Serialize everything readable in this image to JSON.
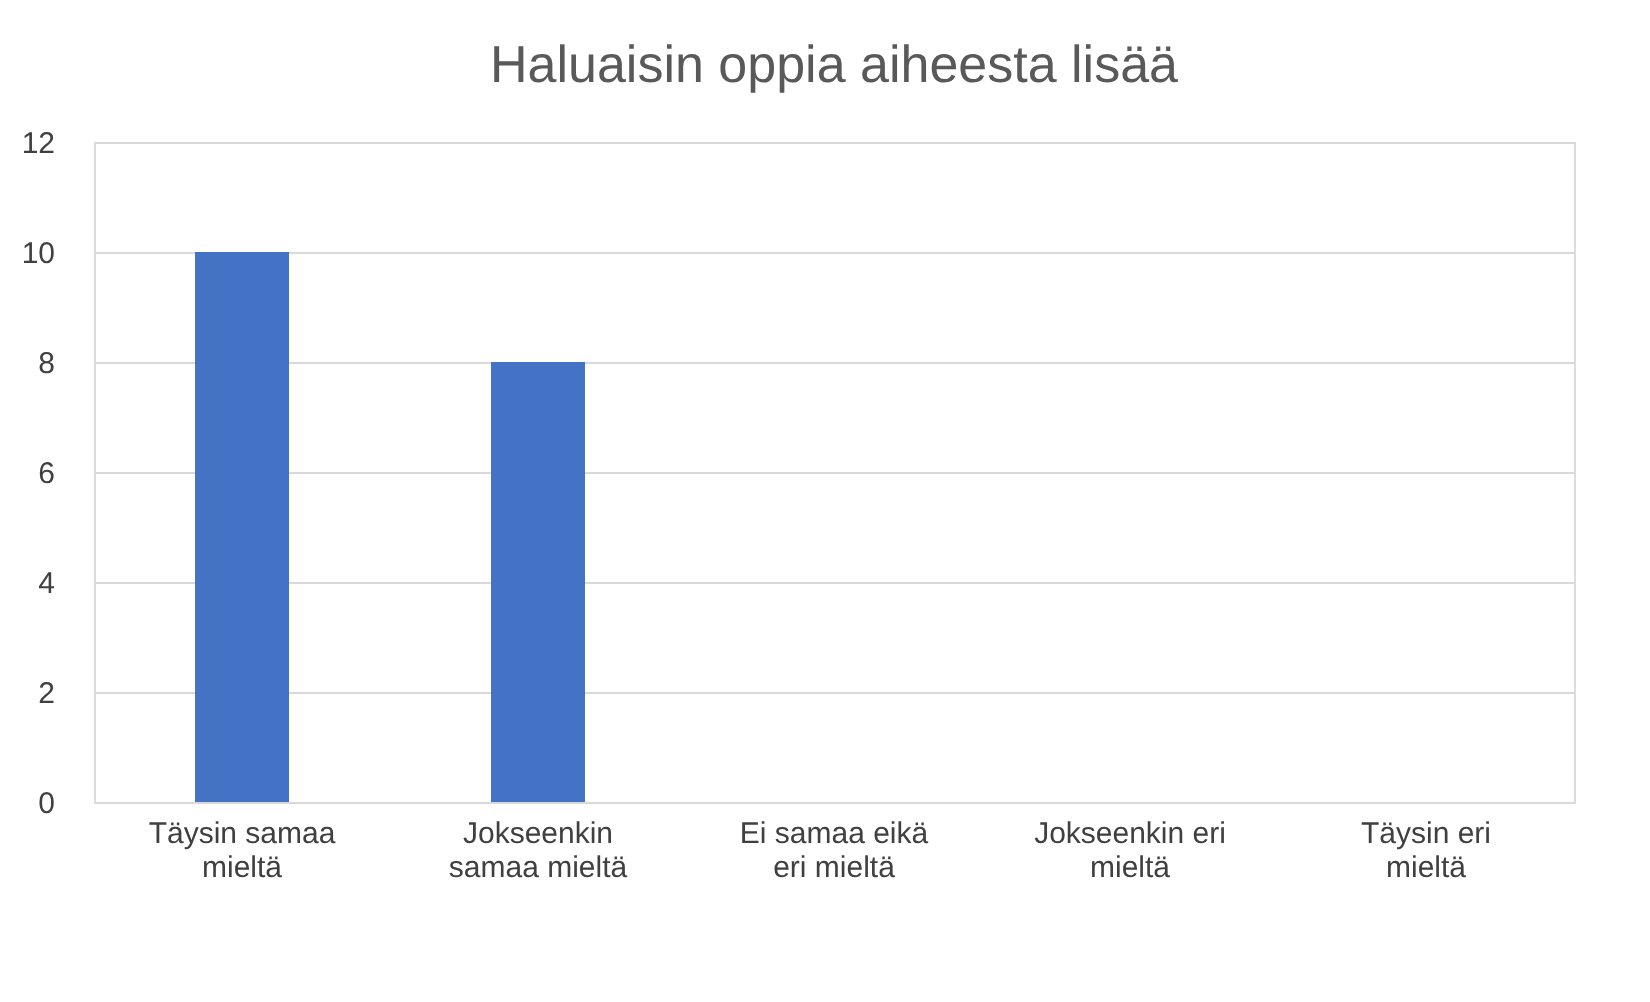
{
  "chart_data": {
    "type": "bar",
    "title": "Haluaisin oppia aiheesta lisää",
    "categories": [
      "Täysin samaa mieltä",
      "Jokseenkin samaa mieltä",
      "Ei samaa eikä eri mieltä",
      "Jokseenkin eri mieltä",
      "Täysin eri mieltä"
    ],
    "values": [
      10,
      8,
      0,
      0,
      0
    ],
    "color": "#4472c4",
    "ylim": [
      0,
      12
    ],
    "yticks": [
      0,
      2,
      4,
      6,
      8,
      10,
      12
    ],
    "grid": "y"
  }
}
